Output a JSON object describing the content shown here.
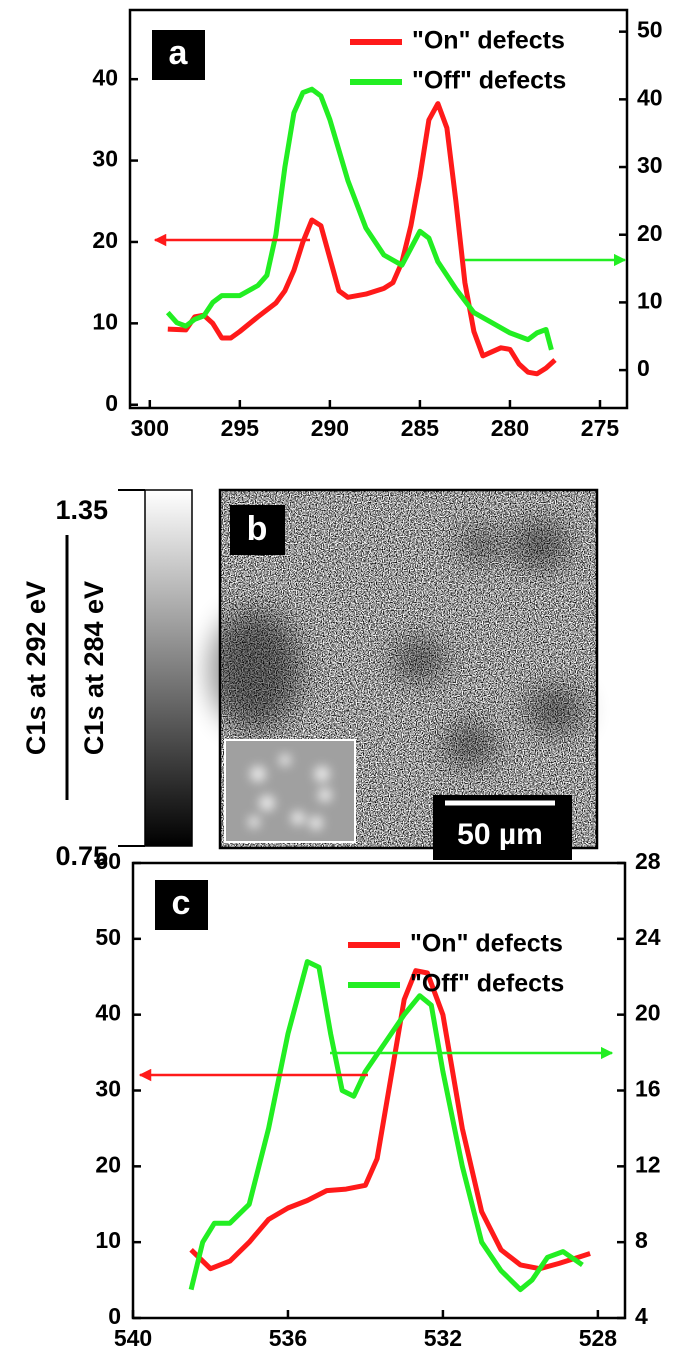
{
  "chart_data": [
    {
      "type": "line",
      "panel_label": "a",
      "legend": "upper right",
      "xlim": [
        301.1,
        273.5
      ],
      "xticks": [
        300,
        295,
        290,
        285,
        280,
        275
      ],
      "ylim": [
        -0.4,
        48.5
      ],
      "yticks": [
        0,
        10,
        20,
        30,
        40
      ],
      "y2lim": [
        -5.6,
        53.2
      ],
      "y2ticks": [
        0,
        10,
        20,
        30,
        40,
        50
      ],
      "series": [
        {
          "name": "\"On\" defects",
          "color": "#ff1a1a",
          "x": [
            299,
            298,
            297.5,
            297,
            296.5,
            296,
            295.5,
            295,
            294,
            293,
            292.5,
            292,
            291.5,
            291,
            290.5,
            290,
            289.5,
            289,
            288,
            287,
            286.5,
            286,
            285.5,
            285,
            284.5,
            284,
            283.5,
            283,
            282.5,
            282,
            281.5,
            281,
            280.5,
            280,
            279.5,
            279,
            278.5,
            278,
            277.5
          ],
          "values": [
            9.3,
            9.2,
            10.8,
            11,
            10,
            8.2,
            8.2,
            9,
            10.8,
            12.5,
            14,
            16.5,
            20,
            22.7,
            22,
            18,
            14,
            13.2,
            13.6,
            14.3,
            15,
            17.5,
            22,
            28,
            35,
            37,
            34,
            25,
            15,
            9,
            6,
            6.5,
            7,
            6.8,
            5,
            4,
            3.8,
            4.5,
            5.5
          ]
        },
        {
          "name": "\"Off\" defects",
          "color": "#22ee22",
          "axis": "y2",
          "x": [
            299,
            298.5,
            298,
            297.5,
            297,
            296.5,
            296,
            295,
            294,
            293.5,
            293,
            292.5,
            292,
            291.5,
            291,
            290.5,
            290,
            289,
            288,
            287,
            286,
            285.5,
            285,
            284.5,
            284,
            283,
            282,
            281,
            280,
            279,
            278.5,
            278,
            277.7
          ],
          "values": [
            8.5,
            7,
            6.5,
            7.5,
            8,
            10,
            11,
            11,
            12.5,
            14,
            20,
            30,
            38,
            41,
            41.5,
            40.5,
            37,
            28,
            21,
            17,
            15.5,
            18,
            20.5,
            19.5,
            16,
            12,
            8.5,
            7,
            5.5,
            4.5,
            5.5,
            6,
            3
          ]
        }
      ]
    },
    {
      "type": "line",
      "panel_label": "c",
      "legend": "upper right",
      "xlim": [
        540,
        527.3
      ],
      "xticks": [
        540,
        536,
        532,
        528
      ],
      "ylim": [
        0,
        60
      ],
      "yticks": [
        0,
        10,
        20,
        30,
        40,
        50,
        60
      ],
      "y2lim": [
        4,
        28
      ],
      "y2ticks": [
        4,
        8,
        12,
        16,
        20,
        24,
        28
      ],
      "series": [
        {
          "name": "\"On\" defects",
          "color": "#ff1a1a",
          "x": [
            538.5,
            538,
            537.5,
            537,
            536.5,
            536,
            535.5,
            535,
            534.5,
            534,
            533.7,
            533.3,
            533,
            532.7,
            532.4,
            532,
            531.5,
            531,
            530.5,
            530,
            529.5,
            529,
            528.5,
            528.2
          ],
          "values": [
            9,
            6.5,
            7.5,
            10,
            13,
            14.5,
            15.5,
            16.8,
            17,
            17.5,
            21,
            33,
            42,
            45.8,
            45.5,
            40,
            25,
            14,
            9,
            7,
            6.5,
            7.2,
            8,
            8.5
          ]
        },
        {
          "name": "\"Off\" defects",
          "color": "#22ee22",
          "axis": "y2",
          "x": [
            538.5,
            538.2,
            537.9,
            537.5,
            537,
            536.5,
            536,
            535.5,
            535.2,
            534.9,
            534.6,
            534.3,
            534,
            533.5,
            533,
            532.6,
            532.3,
            532,
            531.5,
            531,
            530.5,
            530,
            529.7,
            529.3,
            528.9,
            528.4
          ],
          "values": [
            5.5,
            8,
            9,
            9,
            10,
            14,
            19,
            22.8,
            22.5,
            19,
            16,
            15.7,
            17,
            18.5,
            20,
            21,
            20.5,
            17,
            12,
            8,
            6.5,
            5.5,
            6,
            7.2,
            7.5,
            6.8
          ]
        }
      ]
    }
  ],
  "image_panel": {
    "panel_label": "b",
    "colorbar_ticks": [
      0.75,
      1.35
    ],
    "numerator": "C1s at 292 eV",
    "denominator": "C1s at 284 eV",
    "scale_bar": "50 µm"
  }
}
